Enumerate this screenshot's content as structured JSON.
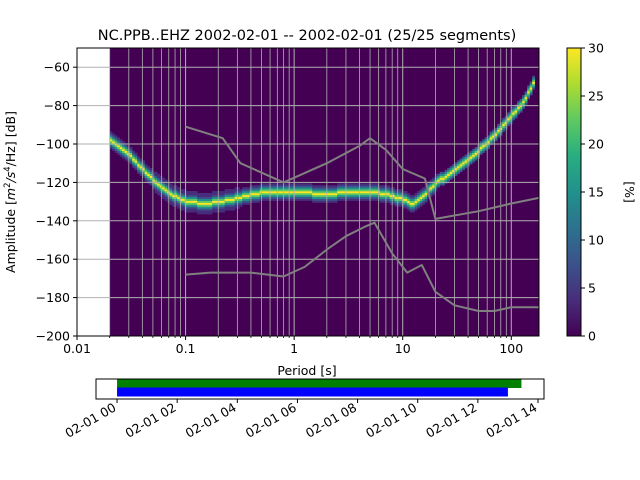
{
  "chart_data": {
    "type": "heatmap",
    "title": "NC.PPB..EHZ   2002-02-01 -- 2002-02-01  (25/25 segments)",
    "xlabel": "Period [s]",
    "ylabel_main": "Amplitude [",
    "ylabel_sup_1": "2",
    "ylabel_mid": "/s",
    "ylabel_sup_2": "4",
    "ylabel_tail": "/Hz] [dB]",
    "x_scale": "log",
    "xlim": [
      0.01,
      180
    ],
    "ylim": [
      -200,
      -50
    ],
    "x_ticks": [
      0.01,
      0.1,
      1,
      10,
      100
    ],
    "x_tick_labels": [
      "0.01",
      "0.1",
      "1",
      "10",
      "100"
    ],
    "y_ticks": [
      -200,
      -180,
      -160,
      -140,
      -120,
      -100,
      -80,
      -60
    ],
    "y_tick_labels": [
      "−200",
      "−180",
      "−160",
      "−140",
      "−120",
      "−100",
      "−80",
      "−60"
    ],
    "grid": true,
    "colorbar": {
      "label": "[%]",
      "range": [
        0,
        30
      ],
      "ticks": [
        0,
        5,
        10,
        15,
        20,
        25,
        30
      ],
      "tick_labels": [
        "0",
        "5",
        "10",
        "15",
        "20",
        "25",
        "30"
      ],
      "colormap": "viridis"
    },
    "data_start_period": 0.02,
    "mode_curve": [
      [
        0.02,
        -98
      ],
      [
        0.03,
        -106
      ],
      [
        0.05,
        -119
      ],
      [
        0.07,
        -126
      ],
      [
        0.1,
        -130
      ],
      [
        0.15,
        -131
      ],
      [
        0.2,
        -130
      ],
      [
        0.3,
        -128
      ],
      [
        0.5,
        -125
      ],
      [
        1,
        -125
      ],
      [
        2,
        -126
      ],
      [
        3,
        -125
      ],
      [
        5,
        -125
      ],
      [
        7,
        -126
      ],
      [
        10,
        -129
      ],
      [
        12,
        -131
      ],
      [
        15,
        -127
      ],
      [
        20,
        -120
      ],
      [
        30,
        -113
      ],
      [
        50,
        -103
      ],
      [
        70,
        -95
      ],
      [
        100,
        -85
      ],
      [
        130,
        -77
      ],
      [
        160,
        -67
      ]
    ],
    "noise_model_high": [
      [
        0.1,
        -91
      ],
      [
        0.22,
        -97
      ],
      [
        0.32,
        -110
      ],
      [
        0.8,
        -120
      ],
      [
        2,
        -110
      ],
      [
        4,
        -101
      ],
      [
        5,
        -97
      ],
      [
        7,
        -103
      ],
      [
        10,
        -113
      ],
      [
        16,
        -118
      ],
      [
        20,
        -139
      ],
      [
        50,
        -135
      ],
      [
        100,
        -131
      ],
      [
        180,
        -128
      ]
    ],
    "noise_model_low": [
      [
        0.1,
        -168
      ],
      [
        0.17,
        -167
      ],
      [
        0.4,
        -167
      ],
      [
        0.8,
        -169
      ],
      [
        1.25,
        -164
      ],
      [
        2,
        -155
      ],
      [
        3,
        -148
      ],
      [
        4.5,
        -143
      ],
      [
        5.5,
        -141
      ],
      [
        8,
        -157
      ],
      [
        11,
        -167
      ],
      [
        15,
        -163
      ],
      [
        20,
        -177
      ],
      [
        30,
        -184
      ],
      [
        50,
        -187
      ],
      [
        70,
        -187
      ],
      [
        100,
        -185
      ],
      [
        180,
        -185
      ]
    ],
    "time_axis": {
      "tick_labels": [
        "02-01 00",
        "02-01 02",
        "02-01 04",
        "02-01 06",
        "02-01 08",
        "02-01 10",
        "02-01 12",
        "02-01 14"
      ],
      "tick_hours": [
        0,
        2,
        4,
        6,
        8,
        10,
        12,
        14
      ],
      "xlim_hours": [
        -0.7,
        14.2
      ],
      "bars": [
        {
          "color": "#008000",
          "start_hours": 0,
          "end_hours": 13.45
        },
        {
          "color": "#0000ff",
          "start_hours": 0,
          "end_hours": 13.0
        }
      ]
    }
  }
}
